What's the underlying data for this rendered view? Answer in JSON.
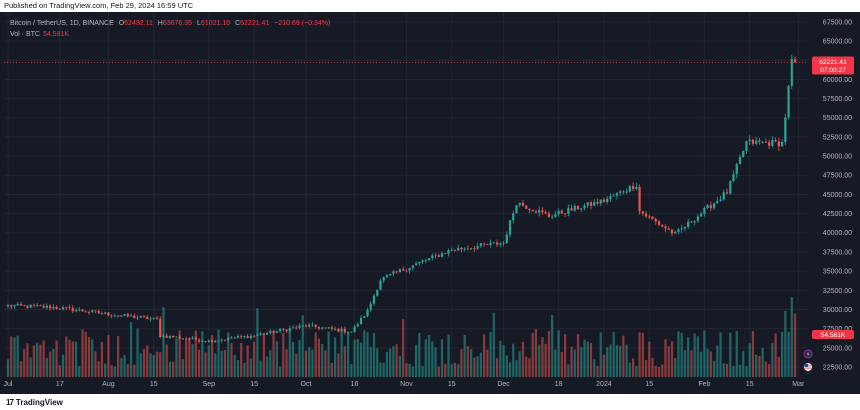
{
  "header": {
    "published_text": "Published on TradingView.com, Feb 29, 2024 16:59 UTC"
  },
  "legend": {
    "symbol": "Bitcoin / TetherUS, 1D, BINANCE",
    "o_label": "O",
    "o_value": "62432.11",
    "h_label": "H",
    "h_value": "63676.35",
    "l_label": "L",
    "l_value": "61021.10",
    "c_label": "C",
    "c_value": "62221.41",
    "change": "−210.69 (−0.34%)",
    "vol_label": "Vol · BTC",
    "vol_value": "54.581K"
  },
  "price_tag": {
    "price": "62221.41",
    "countdown": "07:00:27"
  },
  "volume_tag": {
    "value": "54.581K"
  },
  "brand": {
    "name": "TradingView"
  },
  "colors": {
    "up": "#26a69a",
    "down": "#ef5350",
    "background": "#161a25",
    "grid": "#232632",
    "text": "#b2b5be"
  },
  "chart_data": {
    "type": "candlestick",
    "symbol": "BTCUSDT",
    "interval": "1D",
    "y_ticks": [
      "67500.00",
      "65000.00",
      "62500.00",
      "60000.00",
      "57500.00",
      "55000.00",
      "52500.00",
      "50000.00",
      "47500.00",
      "45000.00",
      "42500.00",
      "40000.00",
      "37500.00",
      "35000.00",
      "32500.00",
      "30000.00",
      "27500.00",
      "25000.00",
      "22500.00"
    ],
    "ylim": [
      21200,
      68800
    ],
    "x_ticks": [
      "Jul",
      "17",
      "Aug",
      "15",
      "Sep",
      "15",
      "Oct",
      "16",
      "Nov",
      "15",
      "Dec",
      "18",
      "2024",
      "15",
      "Feb",
      "15",
      "Mar"
    ],
    "close_series_key_points": [
      {
        "date": "2023-07-01",
        "close": 30500
      },
      {
        "date": "2023-07-15",
        "close": 30300
      },
      {
        "date": "2023-08-01",
        "close": 29400
      },
      {
        "date": "2023-08-16",
        "close": 28700
      },
      {
        "date": "2023-08-17",
        "close": 26600
      },
      {
        "date": "2023-09-01",
        "close": 25900
      },
      {
        "date": "2023-09-15",
        "close": 26600
      },
      {
        "date": "2023-10-01",
        "close": 27900
      },
      {
        "date": "2023-10-15",
        "close": 27100
      },
      {
        "date": "2023-10-20",
        "close": 29800
      },
      {
        "date": "2023-10-24",
        "close": 33900
      },
      {
        "date": "2023-11-01",
        "close": 35400
      },
      {
        "date": "2023-11-15",
        "close": 37800
      },
      {
        "date": "2023-12-01",
        "close": 38700
      },
      {
        "date": "2023-12-05",
        "close": 44000
      },
      {
        "date": "2023-12-15",
        "close": 42200
      },
      {
        "date": "2024-01-01",
        "close": 44200
      },
      {
        "date": "2024-01-11",
        "close": 46300
      },
      {
        "date": "2024-01-12",
        "close": 42800
      },
      {
        "date": "2024-01-23",
        "close": 39800
      },
      {
        "date": "2024-02-08",
        "close": 45300
      },
      {
        "date": "2024-02-14",
        "close": 51800
      },
      {
        "date": "2024-02-25",
        "close": 51700
      },
      {
        "date": "2024-02-28",
        "close": 62400
      },
      {
        "date": "2024-02-29",
        "close": 62221
      }
    ]
  }
}
